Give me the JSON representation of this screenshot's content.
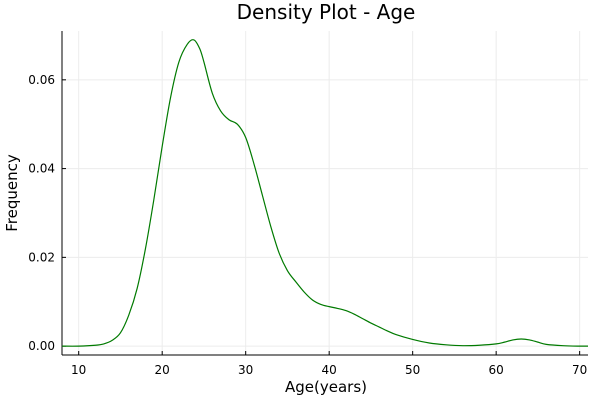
{
  "chart_data": {
    "type": "line",
    "title": "Density Plot - Age",
    "xlabel": "Age(years)",
    "ylabel": "Frequency",
    "xlim": [
      8,
      71
    ],
    "ylim": [
      -0.002,
      0.071
    ],
    "x_ticks": [
      10,
      20,
      30,
      40,
      50,
      60,
      70
    ],
    "y_ticks": [
      0.0,
      0.02,
      0.04,
      0.06
    ],
    "x_tick_labels": [
      "10",
      "20",
      "30",
      "40",
      "50",
      "60",
      "70"
    ],
    "y_tick_labels": [
      "0.00",
      "0.02",
      "0.04",
      "0.06"
    ],
    "grid": true,
    "legend": "none",
    "colors": {
      "line": "#007a00",
      "grid": "#ececec",
      "axis": "#000000"
    },
    "series": [
      {
        "x": [
          8,
          10,
          12,
          13,
          14,
          15,
          16,
          17,
          18,
          19,
          20,
          21,
          22,
          23,
          23.8,
          24.5,
          25,
          26,
          27,
          28,
          29,
          30,
          31,
          32,
          33,
          34,
          35,
          36,
          37,
          38,
          39,
          40,
          41,
          42,
          43,
          44,
          45,
          46,
          47,
          48,
          50,
          52,
          54,
          56,
          58,
          60,
          61,
          62,
          63,
          64,
          65,
          66,
          68,
          70,
          71
        ],
        "y": [
          0.0,
          0.0,
          0.0002,
          0.0005,
          0.0013,
          0.003,
          0.007,
          0.013,
          0.022,
          0.033,
          0.045,
          0.056,
          0.064,
          0.068,
          0.069,
          0.067,
          0.064,
          0.057,
          0.053,
          0.051,
          0.05,
          0.047,
          0.041,
          0.034,
          0.027,
          0.021,
          0.017,
          0.0145,
          0.0122,
          0.0104,
          0.0094,
          0.0089,
          0.0085,
          0.008,
          0.0072,
          0.0062,
          0.0052,
          0.0043,
          0.0034,
          0.0026,
          0.0015,
          0.0007,
          0.0003,
          0.0001,
          0.0002,
          0.0005,
          0.0009,
          0.0014,
          0.0016,
          0.0014,
          0.0009,
          0.0004,
          0.0001,
          0.0,
          0.0
        ]
      }
    ]
  }
}
